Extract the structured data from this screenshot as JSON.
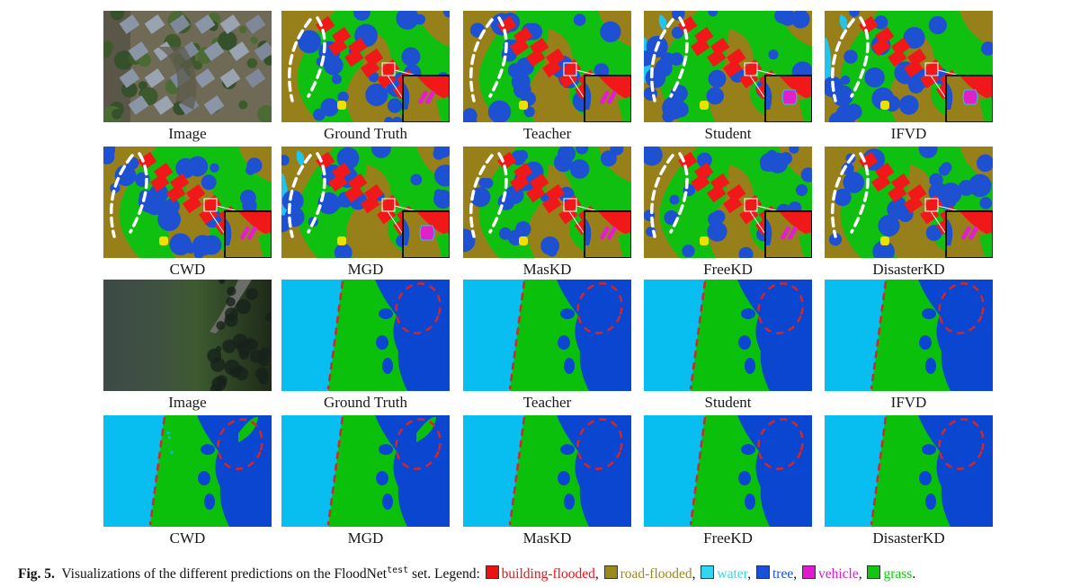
{
  "figure": {
    "rows": [
      {
        "scene": "urban",
        "panels": [
          {
            "label": "Image",
            "kind": "photo"
          },
          {
            "label": "Ground Truth",
            "kind": "seg"
          },
          {
            "label": "Teacher",
            "kind": "seg"
          },
          {
            "label": "Student",
            "kind": "seg"
          },
          {
            "label": "IFVD",
            "kind": "seg"
          }
        ]
      },
      {
        "scene": "urban",
        "panels": [
          {
            "label": "CWD",
            "kind": "seg"
          },
          {
            "label": "MGD",
            "kind": "seg"
          },
          {
            "label": "MasKD",
            "kind": "seg"
          },
          {
            "label": "FreeKD",
            "kind": "seg"
          },
          {
            "label": "DisasterKD",
            "kind": "seg"
          }
        ]
      },
      {
        "scene": "river",
        "panels": [
          {
            "label": "Image",
            "kind": "photo"
          },
          {
            "label": "Ground Truth",
            "kind": "seg"
          },
          {
            "label": "Teacher",
            "kind": "seg"
          },
          {
            "label": "Student",
            "kind": "seg"
          },
          {
            "label": "IFVD",
            "kind": "seg"
          }
        ]
      },
      {
        "scene": "river",
        "panels": [
          {
            "label": "CWD",
            "kind": "seg"
          },
          {
            "label": "MGD",
            "kind": "seg"
          },
          {
            "label": "MasKD",
            "kind": "seg"
          },
          {
            "label": "FreeKD",
            "kind": "seg"
          },
          {
            "label": "DisasterKD",
            "kind": "seg"
          }
        ]
      }
    ]
  },
  "caption": {
    "fig_label": "Fig. 5.",
    "text_before": "Visualizations of the different predictions on the FloodNet",
    "superscript": "test",
    "text_after": "set. Legend:",
    "legend": [
      {
        "name": "building-flooded",
        "color": "#ee1111"
      },
      {
        "name": "road-flooded",
        "color": "#9a8a1e"
      },
      {
        "name": "water",
        "color": "#33d6f0"
      },
      {
        "name": "tree",
        "color": "#1a4fd8"
      },
      {
        "name": "vehicle",
        "color": "#e01ad0"
      },
      {
        "name": "grass",
        "color": "#11c811"
      }
    ],
    "separator": ",",
    "end": "."
  },
  "palette": {
    "building": "#f01818",
    "road": "#97801a",
    "water": "#20c4ef",
    "tree": "#1e50d2",
    "vehicle": "#e020c8",
    "grass": "#10c010",
    "river_water": "#08bdf0",
    "river_grass": "#0ac00a",
    "river_tree": "#0a46d0",
    "marker": "#d42828"
  }
}
